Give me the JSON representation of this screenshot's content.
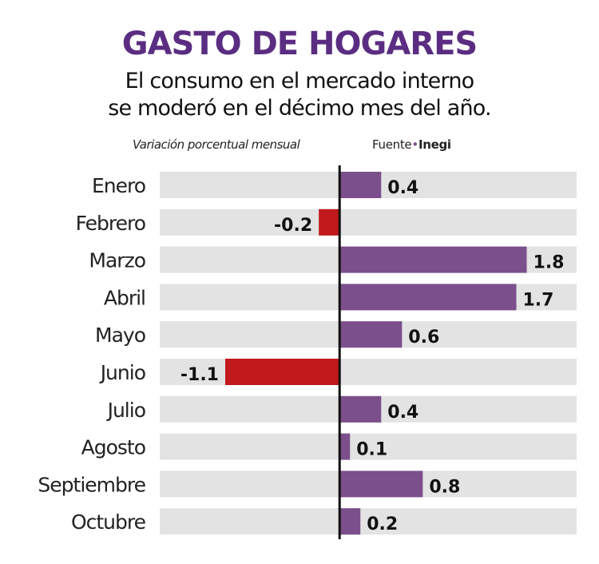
{
  "chart_data": {
    "type": "bar",
    "orientation": "horizontal",
    "title": "GASTO DE HOGARES",
    "subtitle": [
      "El consumo en el mercado interno",
      "se moderó en el décimo mes del año."
    ],
    "note": "Variación porcentual mensual",
    "source_label": "Fuente",
    "source": "Inegi",
    "categories": [
      "Enero",
      "Febrero",
      "Marzo",
      "Abril",
      "Mayo",
      "Junio",
      "Julio",
      "Agosto",
      "Septiembre",
      "Octubre"
    ],
    "values": [
      0.4,
      -0.2,
      1.8,
      1.7,
      0.6,
      -1.1,
      0.4,
      0.1,
      0.8,
      0.2
    ],
    "labels": [
      "0.4",
      "-0.2",
      "1.8",
      "1.7",
      "0.6",
      "-1.1",
      "0.4",
      "0.1",
      "0.8",
      "0.2"
    ],
    "xlim": [
      -1.73,
      2.28
    ],
    "colors": {
      "positive": "#7b4f8b",
      "negative": "#c1191c",
      "track": "#e3e3e3",
      "title": "#5b2d82",
      "axis": "#111111"
    }
  }
}
